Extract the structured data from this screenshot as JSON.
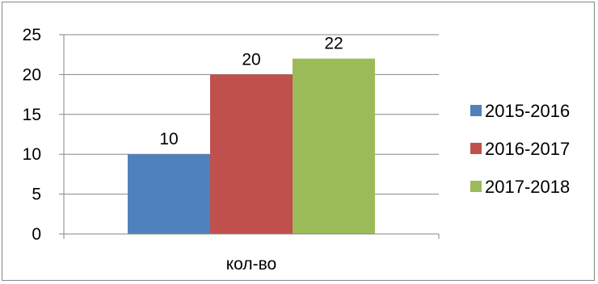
{
  "chart_data": {
    "type": "bar",
    "categories": [
      "кол-во"
    ],
    "series": [
      {
        "name": "2015-2016",
        "values": [
          10
        ],
        "color": "#4F81BD"
      },
      {
        "name": "2016-2017",
        "values": [
          20
        ],
        "color": "#C0504D"
      },
      {
        "name": "2017-2018",
        "values": [
          22
        ],
        "color": "#9BBB59"
      }
    ],
    "ylim": [
      0,
      25
    ],
    "yticks": [
      0,
      5,
      10,
      15,
      20,
      25
    ],
    "grid": true,
    "legend": "right",
    "data_labels": true,
    "axis_color": "#868686"
  }
}
